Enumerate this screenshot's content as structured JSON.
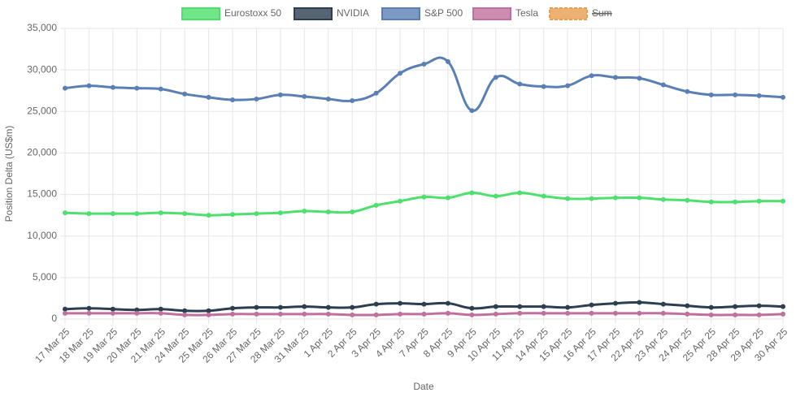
{
  "chart_data": {
    "type": "line",
    "y_label": "Position Delta (US$m)",
    "x_label": "Date",
    "categories": [
      "17 Mar 25",
      "18 Mar 25",
      "19 Mar 25",
      "20 Mar 25",
      "21 Mar 25",
      "24 Mar 25",
      "25 Mar 25",
      "26 Mar 25",
      "27 Mar 25",
      "28 Mar 25",
      "31 Mar 25",
      "1 Apr 25",
      "2 Apr 25",
      "3 Apr 25",
      "4 Apr 25",
      "7 Apr 25",
      "8 Apr 25",
      "9 Apr 25",
      "10 Apr 25",
      "11 Apr 25",
      "14 Apr 25",
      "15 Apr 25",
      "16 Apr 25",
      "17 Apr 25",
      "22 Apr 25",
      "23 Apr 25",
      "24 Apr 25",
      "25 Apr 25",
      "28 Apr 25",
      "29 Apr 25",
      "30 Apr 25"
    ],
    "series": [
      {
        "name": "Eurostoxx 50",
        "color": "#4ee06c",
        "values": [
          12800,
          12700,
          12700,
          12700,
          12800,
          12700,
          12500,
          12600,
          12700,
          12800,
          13000,
          12900,
          12900,
          13700,
          14200,
          14700,
          14600,
          15200,
          14800,
          15200,
          14800,
          14500,
          14500,
          14600,
          14600,
          14400,
          14300,
          14100,
          14100,
          14200,
          14200
        ]
      },
      {
        "name": "NVIDIA",
        "color": "#2c3e50",
        "values": [
          1200,
          1300,
          1200,
          1100,
          1200,
          1000,
          1000,
          1300,
          1400,
          1400,
          1500,
          1400,
          1400,
          1800,
          1900,
          1800,
          1900,
          1300,
          1500,
          1500,
          1500,
          1400,
          1700,
          1900,
          2000,
          1800,
          1600,
          1400,
          1500,
          1600,
          1500
        ]
      },
      {
        "name": "S&P 500",
        "color": "#5a7fb4",
        "values": [
          27800,
          28100,
          27900,
          27800,
          27700,
          27100,
          26700,
          26400,
          26500,
          27000,
          26800,
          26500,
          26300,
          27200,
          29600,
          30700,
          31000,
          25100,
          29100,
          28300,
          28000,
          28100,
          29300,
          29100,
          29000,
          28200,
          27400,
          27000,
          27000,
          26900,
          26700
        ]
      },
      {
        "name": "Tesla",
        "color": "#c0709e",
        "values": [
          700,
          700,
          700,
          700,
          700,
          500,
          500,
          600,
          600,
          600,
          600,
          600,
          500,
          500,
          600,
          600,
          700,
          500,
          600,
          700,
          700,
          700,
          700,
          700,
          700,
          700,
          600,
          500,
          500,
          500,
          600
        ]
      },
      {
        "name": "Sum",
        "color": "#e89d4f",
        "hidden": true,
        "values": [
          null,
          null,
          null,
          null,
          null,
          null,
          null,
          null,
          null,
          null,
          null,
          null,
          null,
          null,
          null,
          null,
          null,
          null,
          null,
          null,
          null,
          null,
          null,
          null,
          null,
          null,
          null,
          null,
          null,
          null,
          null
        ]
      }
    ],
    "ylim": [
      0,
      35000
    ],
    "yticks": [
      0,
      {
        "value": 5000,
        "label": "5,000"
      },
      {
        "value": 10000,
        "label": "10,000"
      },
      {
        "value": 15000,
        "label": "15,000"
      },
      {
        "value": 20000,
        "label": "20,000"
      },
      {
        "value": 25000,
        "label": "25,000"
      },
      {
        "value": 30000,
        "label": "30,000"
      },
      {
        "value": 35000,
        "label": "35,000"
      }
    ],
    "grid": true
  }
}
